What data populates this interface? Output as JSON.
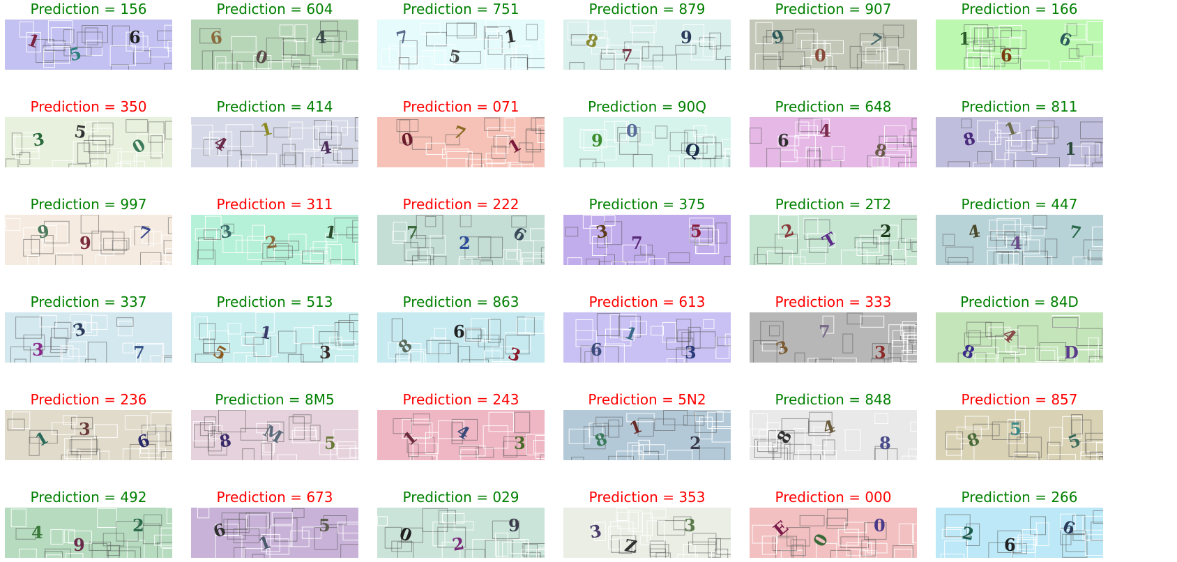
{
  "prefix": "Prediction = ",
  "colors": {
    "correct": "#008000",
    "wrong": "#ff0000"
  },
  "cells": [
    {
      "pred": "156",
      "correct": true,
      "bg": "#c3c1f1",
      "glyphs": [
        {
          "ch": "1",
          "color": "#7a2040",
          "rot": 20
        },
        {
          "ch": "5",
          "color": "#2a7f7a",
          "rot": -15
        },
        {
          "ch": "6",
          "color": "#202020",
          "rot": 0
        }
      ]
    },
    {
      "pred": "604",
      "correct": true,
      "bg": "#b7d5b7",
      "glyphs": [
        {
          "ch": "6",
          "color": "#8a6a3a",
          "rot": -10
        },
        {
          "ch": "0",
          "color": "#5a4a4a",
          "rot": 15
        },
        {
          "ch": "4",
          "color": "#3a4a4a",
          "rot": 0
        }
      ]
    },
    {
      "pred": "751",
      "correct": true,
      "bg": "#e5fbfc",
      "glyphs": [
        {
          "ch": "7",
          "color": "#5a6a8a",
          "rot": -15
        },
        {
          "ch": "5",
          "color": "#4a4a4a",
          "rot": 10
        },
        {
          "ch": "1",
          "color": "#303030",
          "rot": -10
        }
      ]
    },
    {
      "pred": "879",
      "correct": true,
      "bg": "#d9f0ec",
      "glyphs": [
        {
          "ch": "8",
          "color": "#8a8a30",
          "rot": 20
        },
        {
          "ch": "7",
          "color": "#7a3a4a",
          "rot": 0
        },
        {
          "ch": "9",
          "color": "#2a3a5a",
          "rot": 0
        }
      ]
    },
    {
      "pred": "907",
      "correct": true,
      "bg": "#c3c7b7",
      "glyphs": [
        {
          "ch": "9",
          "color": "#2a5a5a",
          "rot": -20
        },
        {
          "ch": "0",
          "color": "#8a4a3a",
          "rot": 0
        },
        {
          "ch": "7",
          "color": "#4a6a6a",
          "rot": 30
        }
      ]
    },
    {
      "pred": "166",
      "correct": true,
      "bg": "#bcf8b0",
      "glyphs": [
        {
          "ch": "1",
          "color": "#2a5a2a",
          "rot": 0
        },
        {
          "ch": "6",
          "color": "#7a3a10",
          "rot": 0
        },
        {
          "ch": "6",
          "color": "#2a5a5a",
          "rot": 20
        }
      ]
    },
    {
      "pred": "350",
      "correct": false,
      "bg": "#e8f1dd",
      "glyphs": [
        {
          "ch": "3",
          "color": "#2a6a3a",
          "rot": -10
        },
        {
          "ch": "5",
          "color": "#303030",
          "rot": 10
        },
        {
          "ch": "0",
          "color": "#3a7a5a",
          "rot": -30
        }
      ]
    },
    {
      "pred": "414",
      "correct": true,
      "bg": "#d6d9e7",
      "glyphs": [
        {
          "ch": "4",
          "color": "#6a2a4a",
          "rot": 30
        },
        {
          "ch": "1",
          "color": "#8a8a20",
          "rot": -15
        },
        {
          "ch": "4",
          "color": "#4a2a5a",
          "rot": -10
        }
      ]
    },
    {
      "pred": "071",
      "correct": false,
      "bg": "#f6c2b7",
      "glyphs": [
        {
          "ch": "0",
          "color": "#6a1a2a",
          "rot": -10
        },
        {
          "ch": "7",
          "color": "#8a6a20",
          "rot": 20
        },
        {
          "ch": "1",
          "color": "#7a1a3a",
          "rot": -30
        }
      ]
    },
    {
      "pred": "90Q",
      "correct": true,
      "bg": "#d7f4ec",
      "glyphs": [
        {
          "ch": "9",
          "color": "#3a8a2a",
          "rot": 0
        },
        {
          "ch": "0",
          "color": "#5a6a9a",
          "rot": 0
        },
        {
          "ch": "Q",
          "color": "#1a2a4a",
          "rot": 10
        }
      ]
    },
    {
      "pred": "648",
      "correct": true,
      "bg": "#e5b8e5",
      "glyphs": [
        {
          "ch": "6",
          "color": "#303030",
          "rot": 0
        },
        {
          "ch": "4",
          "color": "#7a2a4a",
          "rot": 0
        },
        {
          "ch": "8",
          "color": "#6a5a4a",
          "rot": 15
        }
      ]
    },
    {
      "pred": "811",
      "correct": true,
      "bg": "#c0bedd",
      "glyphs": [
        {
          "ch": "8",
          "color": "#4a2a7a",
          "rot": -15
        },
        {
          "ch": "1",
          "color": "#6a6a4a",
          "rot": -20
        },
        {
          "ch": "1",
          "color": "#2a4a3a",
          "rot": 0
        }
      ]
    },
    {
      "pred": "997",
      "correct": true,
      "bg": "#f5ebe0",
      "glyphs": [
        {
          "ch": "9",
          "color": "#4a7a5a",
          "rot": -10
        },
        {
          "ch": "9",
          "color": "#7a2a3a",
          "rot": 0
        },
        {
          "ch": "7",
          "color": "#3a4a8a",
          "rot": 20
        }
      ]
    },
    {
      "pred": "311",
      "correct": false,
      "bg": "#b5f0d8",
      "glyphs": [
        {
          "ch": "3",
          "color": "#3a6a6a",
          "rot": -10
        },
        {
          "ch": "2",
          "color": "#8a6a3a",
          "rot": -10
        },
        {
          "ch": "1",
          "color": "#2a4a2a",
          "rot": 10
        }
      ]
    },
    {
      "pred": "222",
      "correct": false,
      "bg": "#c4ded5",
      "glyphs": [
        {
          "ch": "7",
          "color": "#3a6a3a",
          "rot": 0
        },
        {
          "ch": "2",
          "color": "#2a4a9a",
          "rot": 0
        },
        {
          "ch": "6",
          "color": "#3a4a5a",
          "rot": 30
        }
      ]
    },
    {
      "pred": "375",
      "correct": true,
      "bg": "#c2adec",
      "glyphs": [
        {
          "ch": "3",
          "color": "#5a3a1a",
          "rot": -10
        },
        {
          "ch": "7",
          "color": "#5a2a7a",
          "rot": 0
        },
        {
          "ch": "5",
          "color": "#8a1a3a",
          "rot": 0
        }
      ]
    },
    {
      "pred": "2T2",
      "correct": true,
      "bg": "#c6e6d2",
      "glyphs": [
        {
          "ch": "2",
          "color": "#8a3a3a",
          "rot": -20
        },
        {
          "ch": "T",
          "color": "#5a2a8a",
          "rot": -30
        },
        {
          "ch": "2",
          "color": "#1a3a1a",
          "rot": 0
        }
      ]
    },
    {
      "pred": "447",
      "correct": true,
      "bg": "#b8d3d8",
      "glyphs": [
        {
          "ch": "4",
          "color": "#4a4a2a",
          "rot": -10
        },
        {
          "ch": "4",
          "color": "#6a4a8a",
          "rot": 0
        },
        {
          "ch": "7",
          "color": "#2a6a4a",
          "rot": 10
        }
      ]
    },
    {
      "pred": "337",
      "correct": true,
      "bg": "#d4e8ef",
      "glyphs": [
        {
          "ch": "3",
          "color": "#8a2a8a",
          "rot": 0
        },
        {
          "ch": "3",
          "color": "#2a3a5a",
          "rot": -20
        },
        {
          "ch": "7",
          "color": "#3a5a8a",
          "rot": 0
        }
      ]
    },
    {
      "pred": "513",
      "correct": true,
      "bg": "#c8eeee",
      "glyphs": [
        {
          "ch": "5",
          "color": "#8a5a20",
          "rot": 30
        },
        {
          "ch": "1",
          "color": "#3a3a6a",
          "rot": 10
        },
        {
          "ch": "3",
          "color": "#3a2a2a",
          "rot": 0
        }
      ]
    },
    {
      "pred": "863",
      "correct": true,
      "bg": "#c6eaf0",
      "glyphs": [
        {
          "ch": "8",
          "color": "#5a6a5a",
          "rot": -40
        },
        {
          "ch": "6",
          "color": "#202020",
          "rot": 0
        },
        {
          "ch": "3",
          "color": "#8a1a2a",
          "rot": 20
        }
      ]
    },
    {
      "pred": "613",
      "correct": false,
      "bg": "#c9c0f3",
      "glyphs": [
        {
          "ch": "6",
          "color": "#3a4a7a",
          "rot": 0
        },
        {
          "ch": "1",
          "color": "#3a6a8a",
          "rot": 20
        },
        {
          "ch": "3",
          "color": "#2a3a7a",
          "rot": 0
        }
      ]
    },
    {
      "pred": "333",
      "correct": false,
      "bg": "#b7b7b7",
      "glyphs": [
        {
          "ch": "3",
          "color": "#7a5a30",
          "rot": -20
        },
        {
          "ch": "7",
          "color": "#7a6a8a",
          "rot": 0
        },
        {
          "ch": "3",
          "color": "#8a2a2a",
          "rot": 0
        }
      ]
    },
    {
      "pred": "84D",
      "correct": true,
      "bg": "#c4e4b9",
      "glyphs": [
        {
          "ch": "8",
          "color": "#3a2a8a",
          "rot": 20
        },
        {
          "ch": "4",
          "color": "#8a4a4a",
          "rot": 40
        },
        {
          "ch": "D",
          "color": "#5a3a8a",
          "rot": 0
        }
      ]
    },
    {
      "pred": "236",
      "correct": false,
      "bg": "#e1dbcb",
      "glyphs": [
        {
          "ch": "1",
          "color": "#2a6a5a",
          "rot": -30
        },
        {
          "ch": "3",
          "color": "#6a3a3a",
          "rot": 0
        },
        {
          "ch": "6",
          "color": "#2a2a6a",
          "rot": -20
        }
      ]
    },
    {
      "pred": "8M5",
      "correct": true,
      "bg": "#e6d2dc",
      "glyphs": [
        {
          "ch": "8",
          "color": "#3a2a6a",
          "rot": -10
        },
        {
          "ch": "M",
          "color": "#5a6a7a",
          "rot": 30
        },
        {
          "ch": "5",
          "color": "#6a7a3a",
          "rot": 0
        }
      ]
    },
    {
      "pred": "243",
      "correct": false,
      "bg": "#efb6c4",
      "glyphs": [
        {
          "ch": "1",
          "color": "#6a2a3a",
          "rot": -40
        },
        {
          "ch": "4",
          "color": "#3a4a7a",
          "rot": 30
        },
        {
          "ch": "3",
          "color": "#4a6a2a",
          "rot": 0
        }
      ]
    },
    {
      "pred": "5N2",
      "correct": false,
      "bg": "#b3c9d8",
      "glyphs": [
        {
          "ch": "8",
          "color": "#3a7a5a",
          "rot": -20
        },
        {
          "ch": "1",
          "color": "#6a2a2a",
          "rot": -20
        },
        {
          "ch": "2",
          "color": "#3a3a4a",
          "rot": 0
        }
      ]
    },
    {
      "pred": "848",
      "correct": true,
      "bg": "#e8e9e8",
      "glyphs": [
        {
          "ch": "8",
          "color": "#303030",
          "rot": -60
        },
        {
          "ch": "4",
          "color": "#6a5a3a",
          "rot": -20
        },
        {
          "ch": "8",
          "color": "#4a4a8a",
          "rot": 0
        }
      ]
    },
    {
      "pred": "857",
      "correct": false,
      "bg": "#d9d2b5",
      "glyphs": [
        {
          "ch": "8",
          "color": "#4a6a3a",
          "rot": -20
        },
        {
          "ch": "5",
          "color": "#3a8a8a",
          "rot": 0
        },
        {
          "ch": "5",
          "color": "#3a6a5a",
          "rot": -20
        }
      ]
    },
    {
      "pred": "492",
      "correct": true,
      "bg": "#b6dbbf",
      "glyphs": [
        {
          "ch": "4",
          "color": "#3a7a3a",
          "rot": 0
        },
        {
          "ch": "9",
          "color": "#6a2a4a",
          "rot": 0
        },
        {
          "ch": "2",
          "color": "#2a6a4a",
          "rot": 0
        }
      ]
    },
    {
      "pred": "673",
      "correct": false,
      "bg": "#c8b2d8",
      "glyphs": [
        {
          "ch": "6",
          "color": "#303030",
          "rot": -20
        },
        {
          "ch": "1",
          "color": "#4a5a6a",
          "rot": -20
        },
        {
          "ch": "5",
          "color": "#5a5a4a",
          "rot": 0
        }
      ]
    },
    {
      "pred": "029",
      "correct": true,
      "bg": "#cbe4da",
      "glyphs": [
        {
          "ch": "0",
          "color": "#202020",
          "rot": 20
        },
        {
          "ch": "2",
          "color": "#7a2a7a",
          "rot": -10
        },
        {
          "ch": "9",
          "color": "#3a3a4a",
          "rot": 0
        }
      ]
    },
    {
      "pred": "353",
      "correct": false,
      "bg": "#eaeee5",
      "glyphs": [
        {
          "ch": "3",
          "color": "#4a3a6a",
          "rot": -10
        },
        {
          "ch": "Z",
          "color": "#303030",
          "rot": 10
        },
        {
          "ch": "3",
          "color": "#5a7a4a",
          "rot": 0
        }
      ]
    },
    {
      "pred": "000",
      "correct": false,
      "bg": "#f2c0c0",
      "glyphs": [
        {
          "ch": "E",
          "color": "#7a1a4a",
          "rot": -40
        },
        {
          "ch": "0",
          "color": "#3a6a3a",
          "rot": -60
        },
        {
          "ch": "0",
          "color": "#4a3a8a",
          "rot": 0
        }
      ]
    },
    {
      "pred": "266",
      "correct": true,
      "bg": "#bce8f7",
      "glyphs": [
        {
          "ch": "2",
          "color": "#1a5a4a",
          "rot": 10
        },
        {
          "ch": "6",
          "color": "#202020",
          "rot": 0
        },
        {
          "ch": "6",
          "color": "#2a3a5a",
          "rot": 20
        }
      ]
    }
  ]
}
